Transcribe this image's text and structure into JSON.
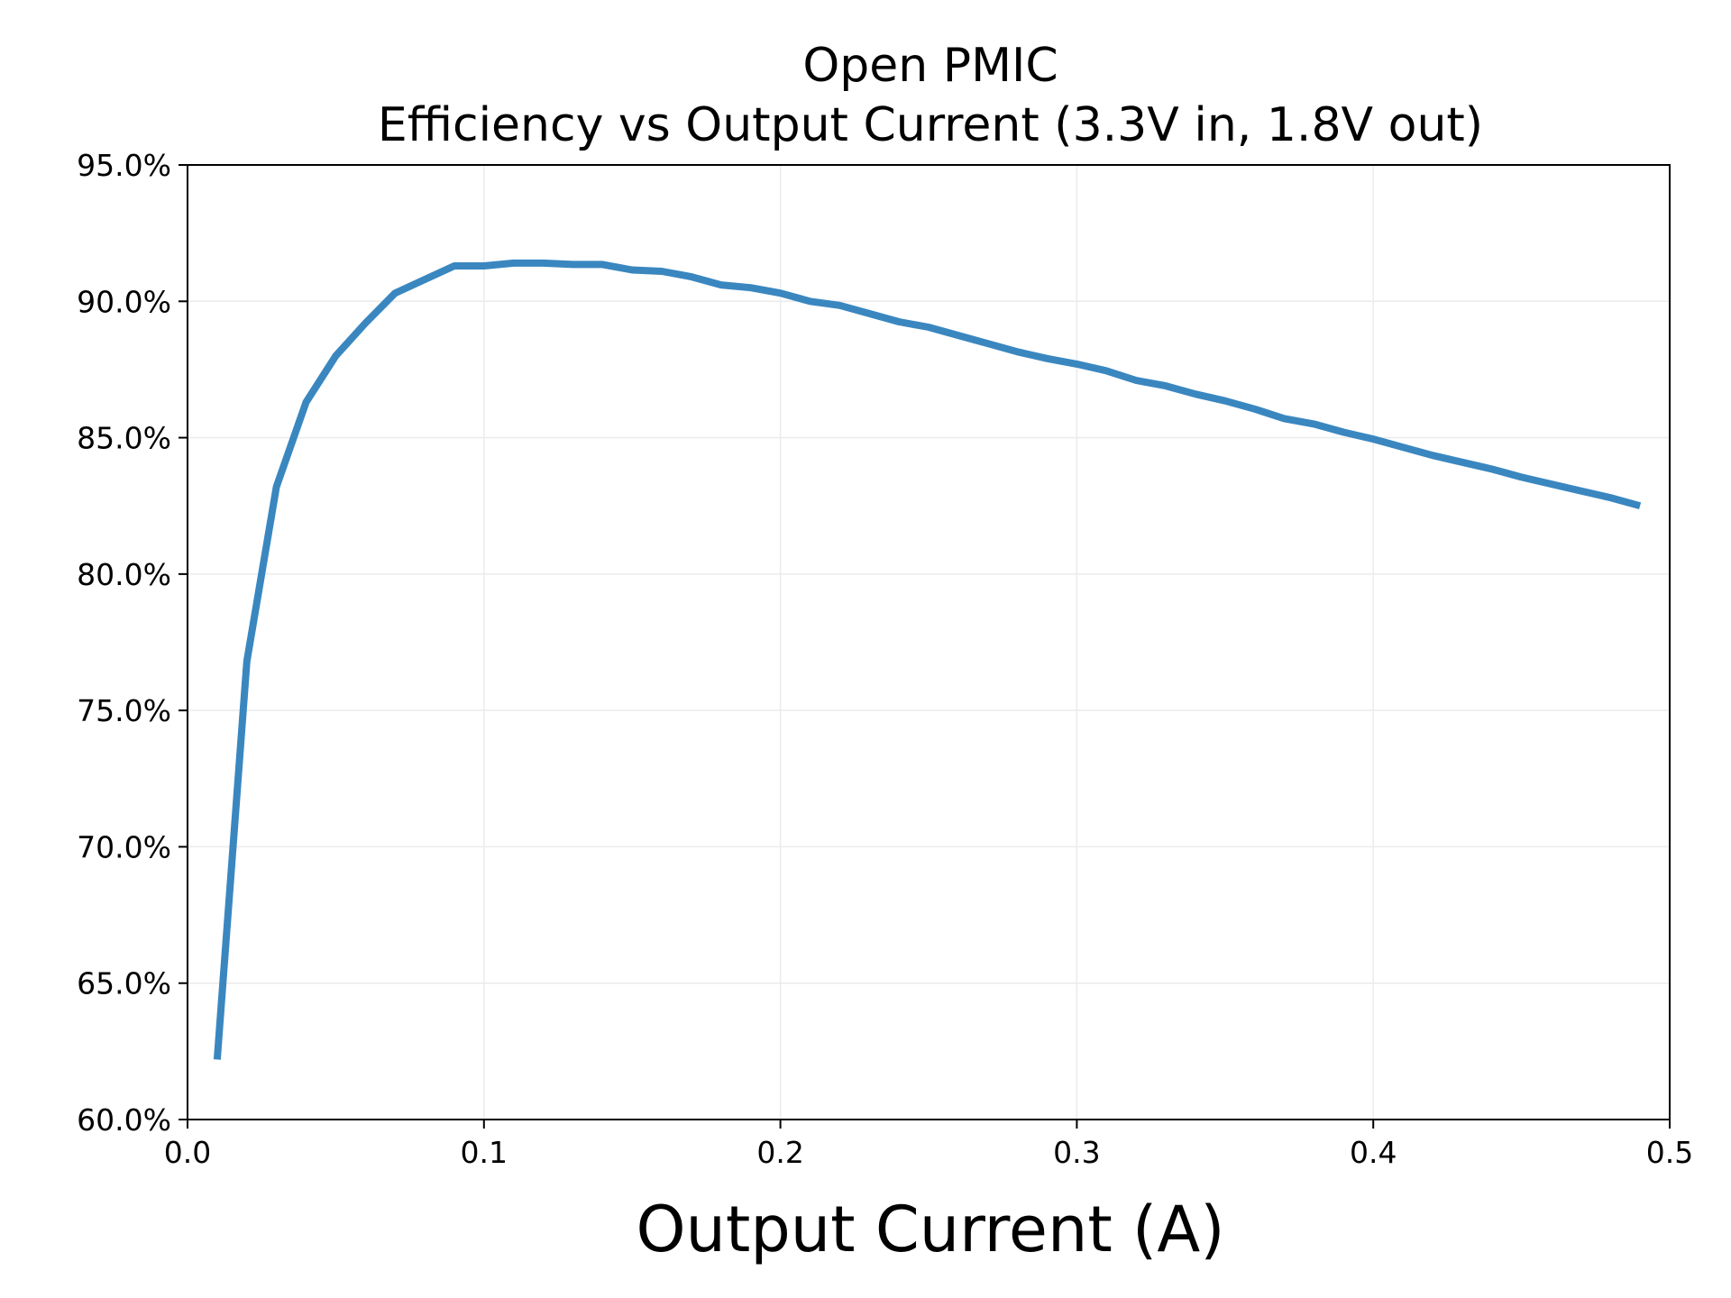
{
  "chart_data": {
    "type": "line",
    "title_lines": [
      "Open PMIC",
      "Efficiency vs Output Current (3.3V in, 1.8V out)"
    ],
    "xlabel": "Output Current (A)",
    "ylabel": "",
    "xlim": [
      0.0,
      0.5
    ],
    "ylim": [
      60.0,
      95.0
    ],
    "x_ticks": [
      0.0,
      0.1,
      0.2,
      0.3,
      0.4,
      0.5
    ],
    "x_tick_labels": [
      "0.0",
      "0.1",
      "0.2",
      "0.3",
      "0.4",
      "0.5"
    ],
    "y_ticks": [
      60,
      65,
      70,
      75,
      80,
      85,
      90,
      95
    ],
    "y_tick_labels": [
      "60.0%",
      "65.0%",
      "70.0%",
      "75.0%",
      "80.0%",
      "85.0%",
      "90.0%",
      "95.0%"
    ],
    "grid": true,
    "line_color": "#3a87c0",
    "series": [
      {
        "x": [
          0.01,
          0.02,
          0.03,
          0.04,
          0.05,
          0.06,
          0.07,
          0.08,
          0.09,
          0.1,
          0.11,
          0.12,
          0.13,
          0.14,
          0.15,
          0.16,
          0.17,
          0.18,
          0.19,
          0.2,
          0.21,
          0.22,
          0.23,
          0.24,
          0.25,
          0.26,
          0.27,
          0.28,
          0.29,
          0.3,
          0.31,
          0.32,
          0.33,
          0.34,
          0.35,
          0.36,
          0.37,
          0.38,
          0.39,
          0.4,
          0.41,
          0.42,
          0.43,
          0.44,
          0.45,
          0.46,
          0.47,
          0.48,
          0.49
        ],
        "y": [
          62.2,
          76.8,
          83.2,
          86.3,
          88.0,
          89.2,
          90.3,
          90.8,
          91.3,
          91.3,
          91.4,
          91.4,
          91.35,
          91.35,
          91.15,
          91.1,
          90.9,
          90.6,
          90.5,
          90.3,
          90.0,
          89.85,
          89.55,
          89.25,
          89.05,
          88.75,
          88.45,
          88.15,
          87.9,
          87.7,
          87.45,
          87.1,
          86.9,
          86.6,
          86.35,
          86.05,
          85.7,
          85.5,
          85.2,
          84.95,
          84.65,
          84.35,
          84.1,
          83.85,
          83.55,
          83.3,
          83.05,
          82.8,
          82.5
        ]
      }
    ]
  }
}
